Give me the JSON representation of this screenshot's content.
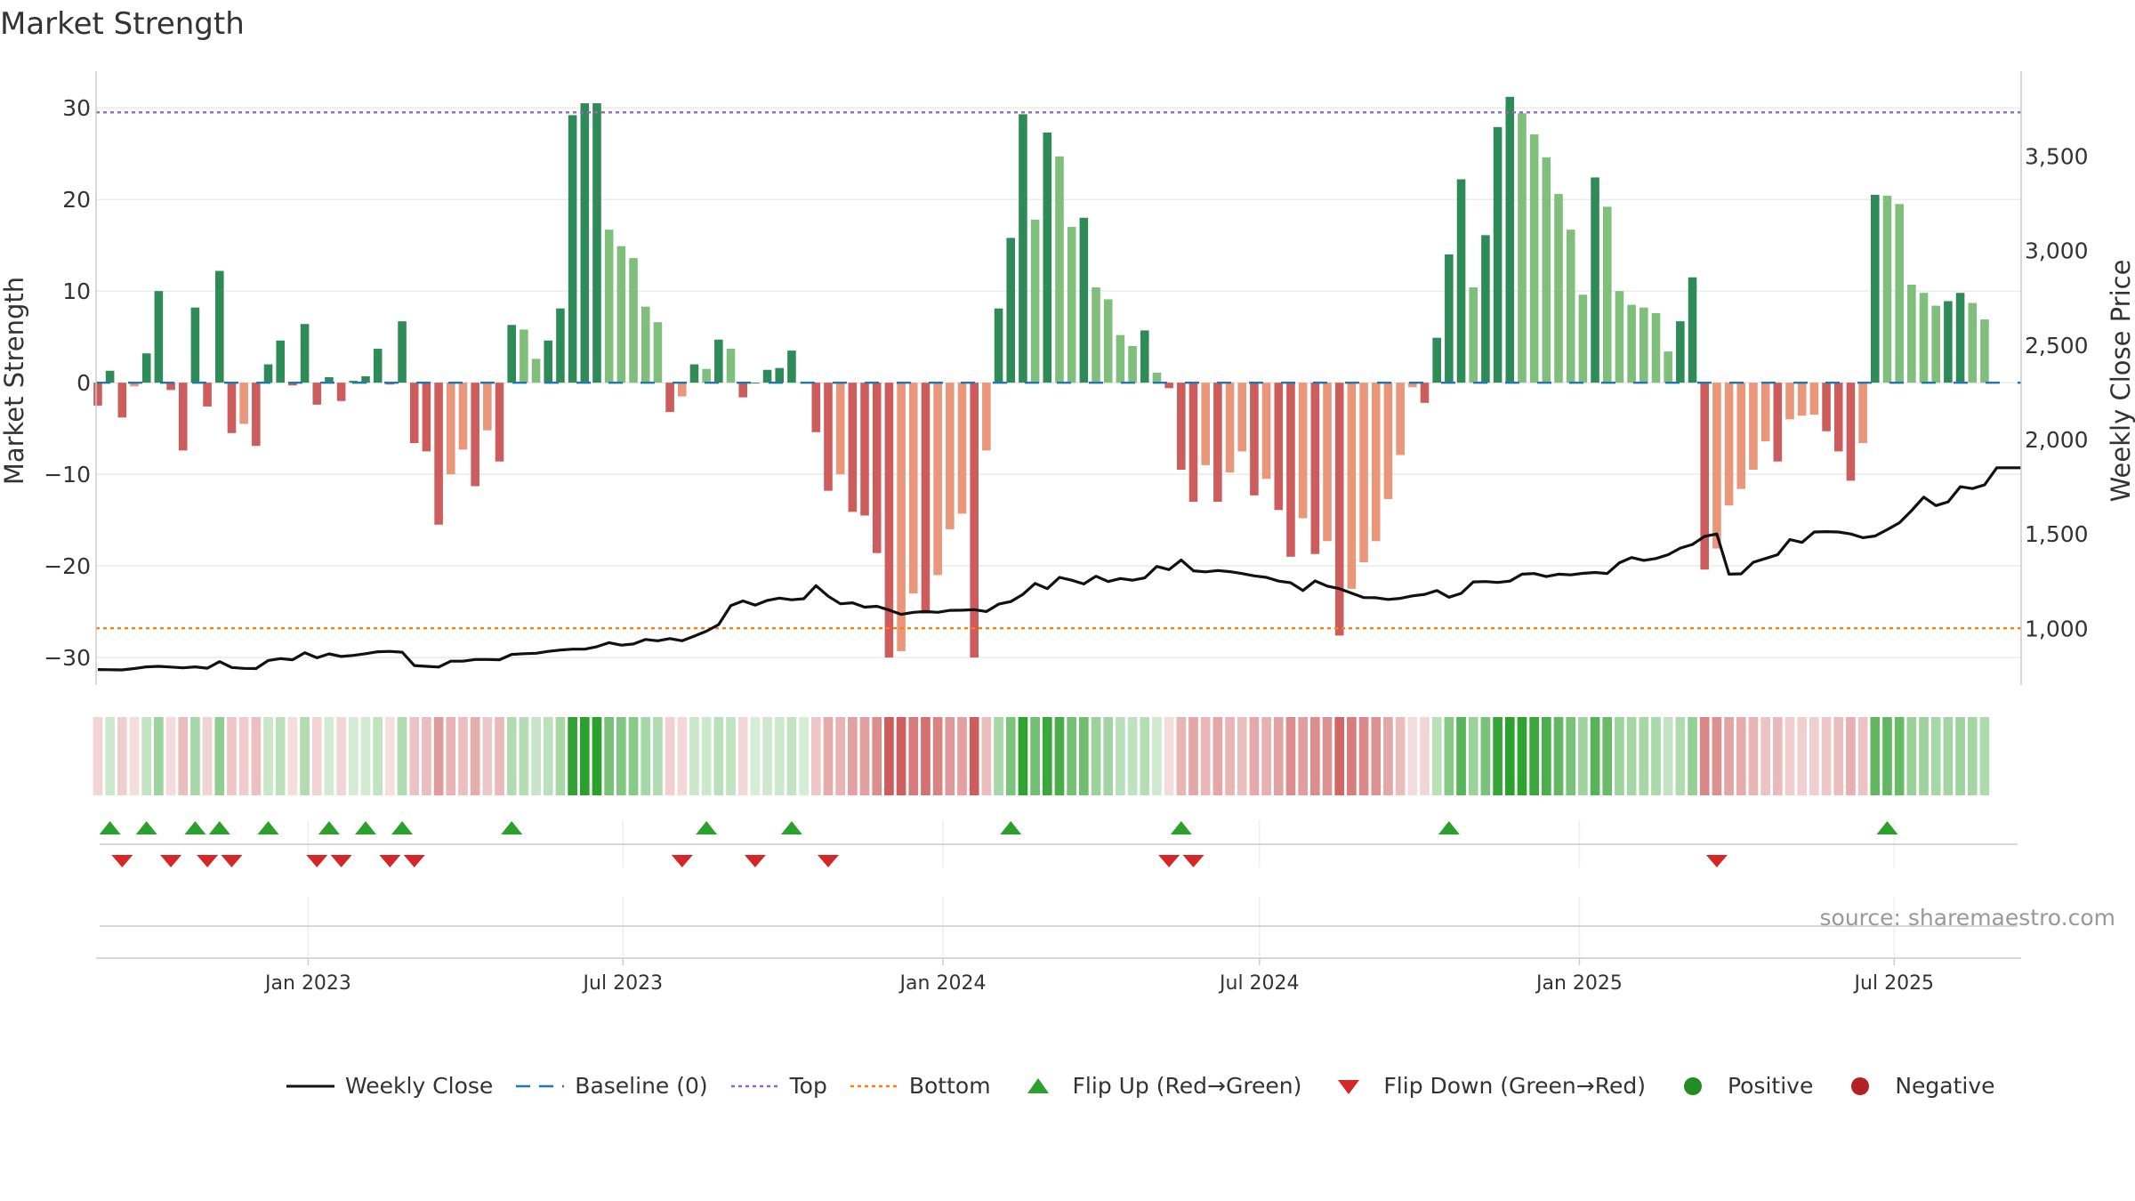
{
  "chart_data": {
    "type": "bar",
    "title": "Market Strength",
    "ylabel": "Market Strength",
    "y2label": "Weekly Close Price",
    "source": "source: sharemaestro.com",
    "ylim": [
      -33,
      34
    ],
    "y2lim": [
      700,
      3950
    ],
    "yticks": [
      30,
      20,
      10,
      0,
      -10,
      -20,
      -30
    ],
    "ytick_labels": [
      "30",
      "20",
      "10",
      "0",
      "−10",
      "−20",
      "−30"
    ],
    "y2ticks": [
      3500,
      3000,
      2500,
      2000,
      1500,
      1000
    ],
    "y2tick_labels": [
      "3,500",
      "3,000",
      "2,500",
      "2,000",
      "1,500",
      "1,000"
    ],
    "top_level": 29.5,
    "bottom_level": -26.8,
    "x_start": "2022-09-01",
    "x_end": "2025-09-12",
    "x_ticks": [
      {
        "date": "2023-01-01",
        "label": "Jan 2023"
      },
      {
        "date": "2023-07-01",
        "label": "Jul 2023"
      },
      {
        "date": "2024-01-01",
        "label": "Jan 2024"
      },
      {
        "date": "2024-07-01",
        "label": "Jul 2024"
      },
      {
        "date": "2025-01-01",
        "label": "Jan 2025"
      },
      {
        "date": "2025-07-01",
        "label": "Jul 2025"
      }
    ],
    "start_week": "2022-09-02",
    "strength": [
      -2.5,
      1.3,
      -3.8,
      -0.4,
      3.2,
      10,
      -0.8,
      -7.4,
      8.2,
      -2.6,
      12.2,
      -5.5,
      -4.5,
      -6.9,
      2,
      4.6,
      -0.3,
      6.4,
      -2.4,
      0.6,
      -2,
      0.2,
      0.7,
      3.7,
      -0.2,
      6.7,
      -6.6,
      -7.5,
      -15.5,
      -10,
      -7.3,
      -11.3,
      -5.2,
      -8.6,
      6.3,
      5.8,
      2.6,
      4.6,
      8.1,
      29.2,
      30.5,
      30.5,
      16.7,
      14.9,
      13.6,
      8.3,
      6.6,
      -3.2,
      -1.5,
      2,
      1.5,
      4.7,
      3.7,
      -1.6,
      0,
      1.4,
      1.6,
      3.5,
      0,
      -5.4,
      -11.8,
      -10,
      -14.1,
      -14.5,
      -18.6,
      -30,
      -29.3,
      -23,
      -25.2,
      -21,
      -16,
      -14.3,
      -30,
      -7.4,
      8.1,
      15.8,
      29.3,
      17.8,
      27.3,
      24.7,
      17,
      18,
      10.4,
      9.1,
      5.2,
      4,
      5.7,
      1.1,
      -0.6,
      -9.5,
      -13,
      -9,
      -13,
      -9.8,
      -7.5,
      -12.3,
      -10.5,
      -13.9,
      -19,
      -14.8,
      -18.7,
      -17.3,
      -27.6,
      -22.5,
      -19.6,
      -17.3,
      -12.7,
      -7.9,
      -0.5,
      -2.2,
      4.9,
      14,
      22.2,
      10.4,
      16.1,
      27.9,
      31.2,
      29.4,
      27.1,
      24.6,
      20.6,
      16.7,
      9.6,
      22.4,
      19.2,
      10,
      8.5,
      8.2,
      7.6,
      3.4,
      6.7,
      11.5,
      -20.4,
      -18.1,
      -13.4,
      -11.6,
      -9.5,
      -6.4,
      -8.6,
      -4,
      -3.6,
      -3.5,
      -5.3,
      -7.5,
      -10.7,
      -6.6,
      20.5,
      20.4,
      19.5,
      10.7,
      9.8,
      8.4,
      8.9,
      9.8,
      8.7,
      6.9
    ],
    "weekly_close": [
      782,
      781,
      780,
      787,
      796,
      799,
      795,
      791,
      796,
      789,
      824,
      793,
      788,
      787,
      830,
      840,
      834,
      871,
      844,
      865,
      851,
      857,
      866,
      876,
      878,
      874,
      803,
      799,
      795,
      826,
      826,
      835,
      835,
      834,
      862,
      866,
      868,
      878,
      885,
      890,
      890,
      903,
      924,
      911,
      917,
      941,
      934,
      946,
      934,
      959,
      985,
      1020,
      1120,
      1145,
      1123,
      1148,
      1160,
      1151,
      1157,
      1226,
      1170,
      1130,
      1135,
      1112,
      1117,
      1097,
      1074,
      1085,
      1089,
      1085,
      1095,
      1096,
      1099,
      1089,
      1128,
      1142,
      1180,
      1238,
      1210,
      1270,
      1255,
      1235,
      1276,
      1248,
      1264,
      1255,
      1267,
      1328,
      1311,
      1362,
      1305,
      1299,
      1306,
      1300,
      1290,
      1278,
      1270,
      1250,
      1241,
      1200,
      1251,
      1224,
      1210,
      1186,
      1163,
      1162,
      1153,
      1159,
      1172,
      1180,
      1200,
      1165,
      1185,
      1246,
      1248,
      1243,
      1250,
      1287,
      1290,
      1274,
      1287,
      1283,
      1291,
      1296,
      1290,
      1347,
      1375,
      1360,
      1370,
      1390,
      1425,
      1444,
      1487,
      1500,
      1287,
      1289,
      1350,
      1370,
      1390,
      1470,
      1455,
      1510,
      1512,
      1510,
      1500,
      1480,
      1489,
      1523,
      1559,
      1623,
      1695,
      1650,
      1670,
      1750,
      1740,
      1760,
      1850,
      1850,
      1850
    ],
    "flip_up_weeks": [
      1,
      4,
      8,
      10,
      14,
      19,
      22,
      25,
      34,
      50,
      57,
      75,
      89,
      111,
      147
    ],
    "flip_down_weeks": [
      2,
      6,
      9,
      11,
      18,
      20,
      24,
      26,
      48,
      54,
      60,
      88,
      90,
      133
    ]
  },
  "legend": [
    {
      "key": "weekly_close",
      "label": "Weekly Close"
    },
    {
      "key": "baseline",
      "label": "Baseline (0)"
    },
    {
      "key": "top",
      "label": "Top"
    },
    {
      "key": "bottom",
      "label": "Bottom"
    },
    {
      "key": "flip_up",
      "label": "Flip Up (Red→Green)"
    },
    {
      "key": "flip_down",
      "label": "Flip Down (Green→Red)"
    },
    {
      "key": "positive",
      "label": "Positive"
    },
    {
      "key": "negative",
      "label": "Negative"
    }
  ],
  "colors": {
    "strong_green": "#2e8b57",
    "light_green": "#7fbf7b",
    "strong_red": "#cd5c5c",
    "light_red": "#e9967a",
    "close_line": "#111111",
    "baseline": "#1f77b4",
    "top": "#9467bd",
    "bottom": "#ff7f0e",
    "flip_up": "#2ca02c",
    "flip_down": "#d62728",
    "positive": "#228b22",
    "negative": "#b22222",
    "grid": "#e6e6e6",
    "axis": "#cccccc",
    "text": "#333333"
  }
}
